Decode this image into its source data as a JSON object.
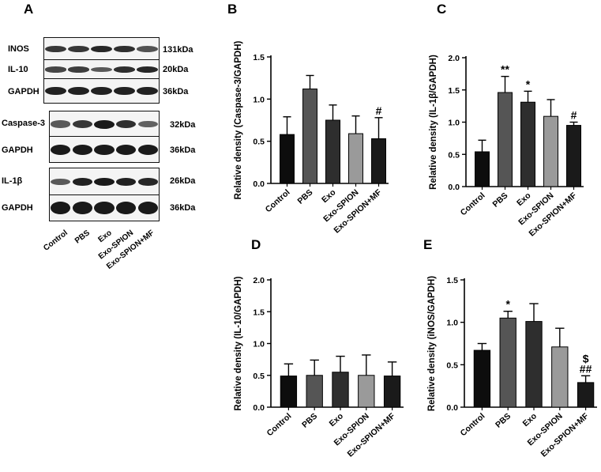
{
  "panel_letters": {
    "a": "A",
    "b": "B",
    "c": "C",
    "d": "D",
    "e": "E"
  },
  "blots": {
    "rows": [
      {
        "label": "INOS",
        "size": "131kDa"
      },
      {
        "label": "IL-10",
        "size": "20kDa"
      },
      {
        "label": "GAPDH",
        "size": "36kDa"
      },
      {
        "label": "Caspase-3",
        "size": "32kDa"
      },
      {
        "label": "GAPDH",
        "size": "36kDa"
      },
      {
        "label": "IL-1β",
        "size": "26kDa"
      },
      {
        "label": "GAPDH",
        "size": "36kDa"
      }
    ],
    "lanes": [
      "Control",
      "PBS",
      "Exo",
      "Exo-SPION",
      "Exo-SPION+MF"
    ]
  },
  "chart_data": [
    {
      "panel": "B",
      "type": "bar",
      "categories": [
        "Control",
        "PBS",
        "Exo",
        "Exo-SPION",
        "Exo-SPION+MF"
      ],
      "values": [
        0.58,
        1.12,
        0.75,
        0.59,
        0.53
      ],
      "errors": [
        0.21,
        0.16,
        0.18,
        0.21,
        0.25
      ],
      "annotations": [
        "",
        "",
        "",
        "",
        "#"
      ],
      "ylabel": "Relative density (Caspase-3/GAPDH)",
      "ylim": [
        0,
        1.5
      ],
      "yticks": [
        "0.0",
        "0.5",
        "1.0",
        "1.5"
      ],
      "yticks_values": [
        0,
        0.5,
        1.0,
        1.5
      ],
      "colors": [
        "#0d0d0d",
        "#555555",
        "#2e2e2e",
        "#9a9a9a",
        "#1a1a1a"
      ]
    },
    {
      "panel": "C",
      "type": "bar",
      "categories": [
        "Control",
        "PBS",
        "Exo",
        "Exo-SPION",
        "Exo-SPION+MF"
      ],
      "values": [
        0.54,
        1.46,
        1.31,
        1.09,
        0.95
      ],
      "errors": [
        0.18,
        0.25,
        0.17,
        0.26,
        0.05
      ],
      "annotations": [
        "",
        "**",
        "*",
        "",
        "#"
      ],
      "ylabel": "Relative density (IL-1β/GAPDH)",
      "ylim": [
        0,
        2.0
      ],
      "yticks": [
        "0.0",
        "0.5",
        "1.0",
        "1.5",
        "2.0"
      ],
      "yticks_values": [
        0,
        0.5,
        1.0,
        1.5,
        2.0
      ],
      "colors": [
        "#0d0d0d",
        "#555555",
        "#2e2e2e",
        "#9a9a9a",
        "#1a1a1a"
      ]
    },
    {
      "panel": "D",
      "type": "bar",
      "categories": [
        "Control",
        "PBS",
        "Exo",
        "Exo-SPION",
        "Exo-SPION+MF"
      ],
      "values": [
        0.49,
        0.5,
        0.55,
        0.5,
        0.49
      ],
      "errors": [
        0.19,
        0.24,
        0.25,
        0.32,
        0.22
      ],
      "annotations": [
        "",
        "",
        "",
        "",
        ""
      ],
      "ylabel": "Relative density (IL-10/GAPDH)",
      "ylim": [
        0,
        2.0
      ],
      "yticks": [
        "0.0",
        "0.5",
        "1.0",
        "1.5",
        "2.0"
      ],
      "yticks_values": [
        0,
        0.5,
        1.0,
        1.5,
        2.0
      ],
      "colors": [
        "#0d0d0d",
        "#555555",
        "#2e2e2e",
        "#9a9a9a",
        "#1a1a1a"
      ]
    },
    {
      "panel": "E",
      "type": "bar",
      "categories": [
        "Control",
        "PBS",
        "Exo",
        "Exo-SPION",
        "Exo-SPION+MF"
      ],
      "values": [
        0.67,
        1.05,
        1.01,
        0.71,
        0.29
      ],
      "errors": [
        0.08,
        0.08,
        0.21,
        0.22,
        0.08
      ],
      "annotations": [
        "",
        "*",
        "",
        "",
        "$\n##"
      ],
      "ylabel": "Relative density (iNOS/GAPDH)",
      "ylim": [
        0,
        1.5
      ],
      "yticks": [
        "0.0",
        "0.5",
        "1.0",
        "1.5"
      ],
      "yticks_values": [
        0,
        0.5,
        1.0,
        1.5
      ],
      "colors": [
        "#0d0d0d",
        "#555555",
        "#2e2e2e",
        "#9a9a9a",
        "#1a1a1a"
      ]
    }
  ]
}
